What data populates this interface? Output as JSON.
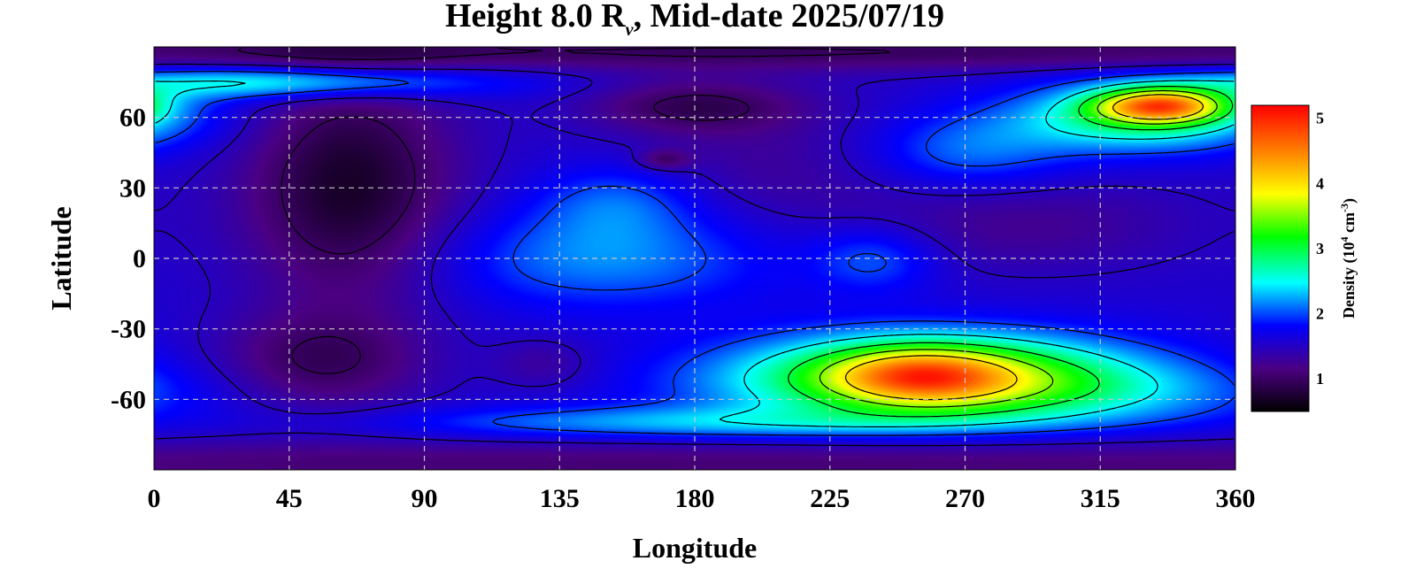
{
  "chart_data": {
    "type": "heatmap",
    "title_parts": {
      "prefix": "Height 8.0 R",
      "subscript": "v",
      "suffix": ", Mid-date 2025/07/19"
    },
    "xlabel": "Longitude",
    "ylabel": "Latitude",
    "xlim": [
      0,
      360
    ],
    "ylim": [
      -90,
      90
    ],
    "x_ticks": [
      "0",
      "45",
      "90",
      "135",
      "180",
      "225",
      "270",
      "315",
      "360"
    ],
    "y_ticks": [
      "60",
      "30",
      "0",
      "-30",
      "-60"
    ],
    "grid": true,
    "colorbar": {
      "label_parts": {
        "prefix": "Density (10",
        "exp1": "4",
        "mid": " cm",
        "exp2": "-3",
        "suffix": ")"
      },
      "ticks": [
        "1",
        "2",
        "3",
        "4",
        "5"
      ],
      "range": [
        0.5,
        5.2
      ],
      "colors": [
        "#000000",
        "#4b0082",
        "#0000ff",
        "#00ffff",
        "#00ff00",
        "#ffff00",
        "#ff8000",
        "#ff0000"
      ]
    },
    "background_density": 1.6,
    "features": [
      {
        "lon": 65,
        "lat": 30,
        "sx": 25,
        "sy": 35,
        "amp": -0.9
      },
      {
        "lon": 55,
        "lat": -45,
        "sx": 25,
        "sy": 15,
        "amp": -0.6
      },
      {
        "lon": 180,
        "lat": 65,
        "sx": 25,
        "sy": 8,
        "amp": -0.6
      },
      {
        "lon": 130,
        "lat": -45,
        "sx": 12,
        "sy": 8,
        "amp": -0.3
      },
      {
        "lon": 170,
        "lat": 42,
        "sx": 6,
        "sy": 3,
        "amp": -0.5
      },
      {
        "lon": 290,
        "lat": 15,
        "sx": 40,
        "sy": 15,
        "amp": -0.35
      },
      {
        "lon": 205,
        "lat": 40,
        "sx": 40,
        "sy": 20,
        "amp": -0.3
      },
      {
        "lon": 150,
        "lat": 0,
        "sx": 40,
        "sy": 15,
        "amp": 0.6
      },
      {
        "lon": 155,
        "lat": 25,
        "sx": 20,
        "sy": 12,
        "amp": 0.5
      },
      {
        "lon": 240,
        "lat": 0,
        "sx": 15,
        "sy": 10,
        "amp": 0.5
      },
      {
        "lon": 270,
        "lat": 45,
        "sx": 25,
        "sy": 12,
        "amp": 0.6
      },
      {
        "lon": 330,
        "lat": 60,
        "sx": 30,
        "sy": 10,
        "amp": 1.3
      },
      {
        "lon": 335,
        "lat": 65,
        "sx": 15,
        "sy": 5,
        "amp": 2.2
      },
      {
        "lon": 45,
        "lat": 75,
        "sx": 45,
        "sy": 5,
        "amp": 1.1
      },
      {
        "lon": 260,
        "lat": -48,
        "sx": 45,
        "sy": 12,
        "amp": 1.8
      },
      {
        "lon": 255,
        "lat": -50,
        "sx": 20,
        "sy": 8,
        "amp": 1.2
      },
      {
        "lon": 280,
        "lat": -58,
        "sx": 60,
        "sy": 10,
        "amp": 0.8
      },
      {
        "lon": 180,
        "lat": -70,
        "sx": 70,
        "sy": 5,
        "amp": 0.7
      },
      {
        "lon": 180,
        "lat": 88,
        "sx": 400,
        "sy": 6,
        "amp": -0.6
      },
      {
        "lon": 180,
        "lat": -88,
        "sx": 400,
        "sy": 8,
        "amp": -0.5
      }
    ]
  }
}
